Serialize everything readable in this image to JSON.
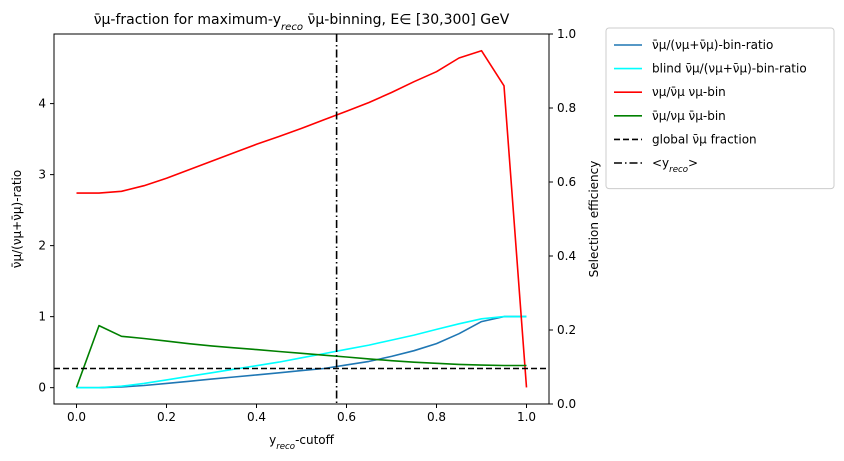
{
  "chart_data": {
    "type": "line",
    "title": "ν̄μ-fraction for maximum-y_reco ν̄μ-binning, E∈ [30,300] GeV",
    "xlabel": "y_reco-cutoff",
    "ylabel_left": "ν̄μ/(νμ+ν̄μ)-ratio",
    "ylabel_right": "Selection efficiency",
    "xlim": [
      -0.05,
      1.05
    ],
    "ylim_left": [
      -0.23,
      4.98
    ],
    "ylim_right": [
      0.0,
      1.0
    ],
    "xticks": [
      0.0,
      0.2,
      0.4,
      0.6,
      0.8,
      1.0
    ],
    "yticks_left": [
      0,
      1,
      2,
      3,
      4
    ],
    "yticks_right": [
      0.0,
      0.2,
      0.4,
      0.6,
      0.8,
      1.0
    ],
    "grid": false,
    "legend_placement": "outside-top-right",
    "series": [
      {
        "name": "ν̄μ/(νμ+ν̄μ)-bin-ratio",
        "axis": "left",
        "color": "#1f77b4",
        "x": [
          0,
          0.05,
          0.1,
          0.15,
          0.2,
          0.25,
          0.3,
          0.35,
          0.4,
          0.45,
          0.5,
          0.55,
          0.6,
          0.65,
          0.7,
          0.75,
          0.8,
          0.85,
          0.9,
          0.95,
          1.0
        ],
        "y": [
          0,
          0,
          0.01,
          0.03,
          0.06,
          0.09,
          0.12,
          0.15,
          0.18,
          0.21,
          0.24,
          0.27,
          0.32,
          0.37,
          0.44,
          0.52,
          0.62,
          0.76,
          0.93,
          1.0,
          1.0
        ]
      },
      {
        "name": "blind ν̄μ/(νμ+ν̄μ)-bin-ratio",
        "axis": "left",
        "color": "#00ffff",
        "x": [
          0,
          0.05,
          0.1,
          0.15,
          0.2,
          0.25,
          0.3,
          0.35,
          0.4,
          0.45,
          0.5,
          0.55,
          0.6,
          0.65,
          0.7,
          0.75,
          0.8,
          0.85,
          0.9,
          0.95,
          1.0
        ],
        "y": [
          0,
          0,
          0.02,
          0.06,
          0.11,
          0.16,
          0.21,
          0.26,
          0.31,
          0.36,
          0.42,
          0.48,
          0.54,
          0.6,
          0.67,
          0.74,
          0.82,
          0.9,
          0.97,
          1.0,
          1.0
        ]
      },
      {
        "name": "νμ/ν̄μ νμ-bin",
        "axis": "right",
        "color": "#ff0000",
        "x": [
          0,
          0.05,
          0.1,
          0.15,
          0.2,
          0.25,
          0.3,
          0.35,
          0.4,
          0.45,
          0.5,
          0.55,
          0.6,
          0.65,
          0.7,
          0.75,
          0.8,
          0.85,
          0.9,
          0.95,
          1.0
        ],
        "y": [
          0.57,
          0.57,
          0.575,
          0.59,
          0.61,
          0.633,
          0.656,
          0.679,
          0.702,
          0.723,
          0.745,
          0.768,
          0.791,
          0.815,
          0.842,
          0.871,
          0.898,
          0.935,
          0.955,
          0.86,
          0.045
        ]
      },
      {
        "name": "ν̄μ/νμ ν̄μ-bin",
        "axis": "right",
        "color": "#008000",
        "x": [
          0,
          0.05,
          0.1,
          0.15,
          0.2,
          0.25,
          0.3,
          0.35,
          0.4,
          0.45,
          0.5,
          0.55,
          0.6,
          0.65,
          0.7,
          0.75,
          0.8,
          0.85,
          0.9,
          0.95,
          1.0
        ],
        "y": [
          0.045,
          0.212,
          0.183,
          0.177,
          0.17,
          0.163,
          0.157,
          0.152,
          0.147,
          0.142,
          0.137,
          0.132,
          0.127,
          0.122,
          0.117,
          0.113,
          0.11,
          0.107,
          0.105,
          0.104,
          0.104
        ]
      }
    ],
    "reference_lines": [
      {
        "name": "global ν̄μ fraction",
        "orientation": "horizontal",
        "axis": "left",
        "value": 0.27,
        "style": "dashed",
        "color": "#000000"
      },
      {
        "name": "<y_reco>",
        "orientation": "vertical",
        "value": 0.578,
        "style": "dashdot",
        "color": "#000000"
      }
    ]
  }
}
